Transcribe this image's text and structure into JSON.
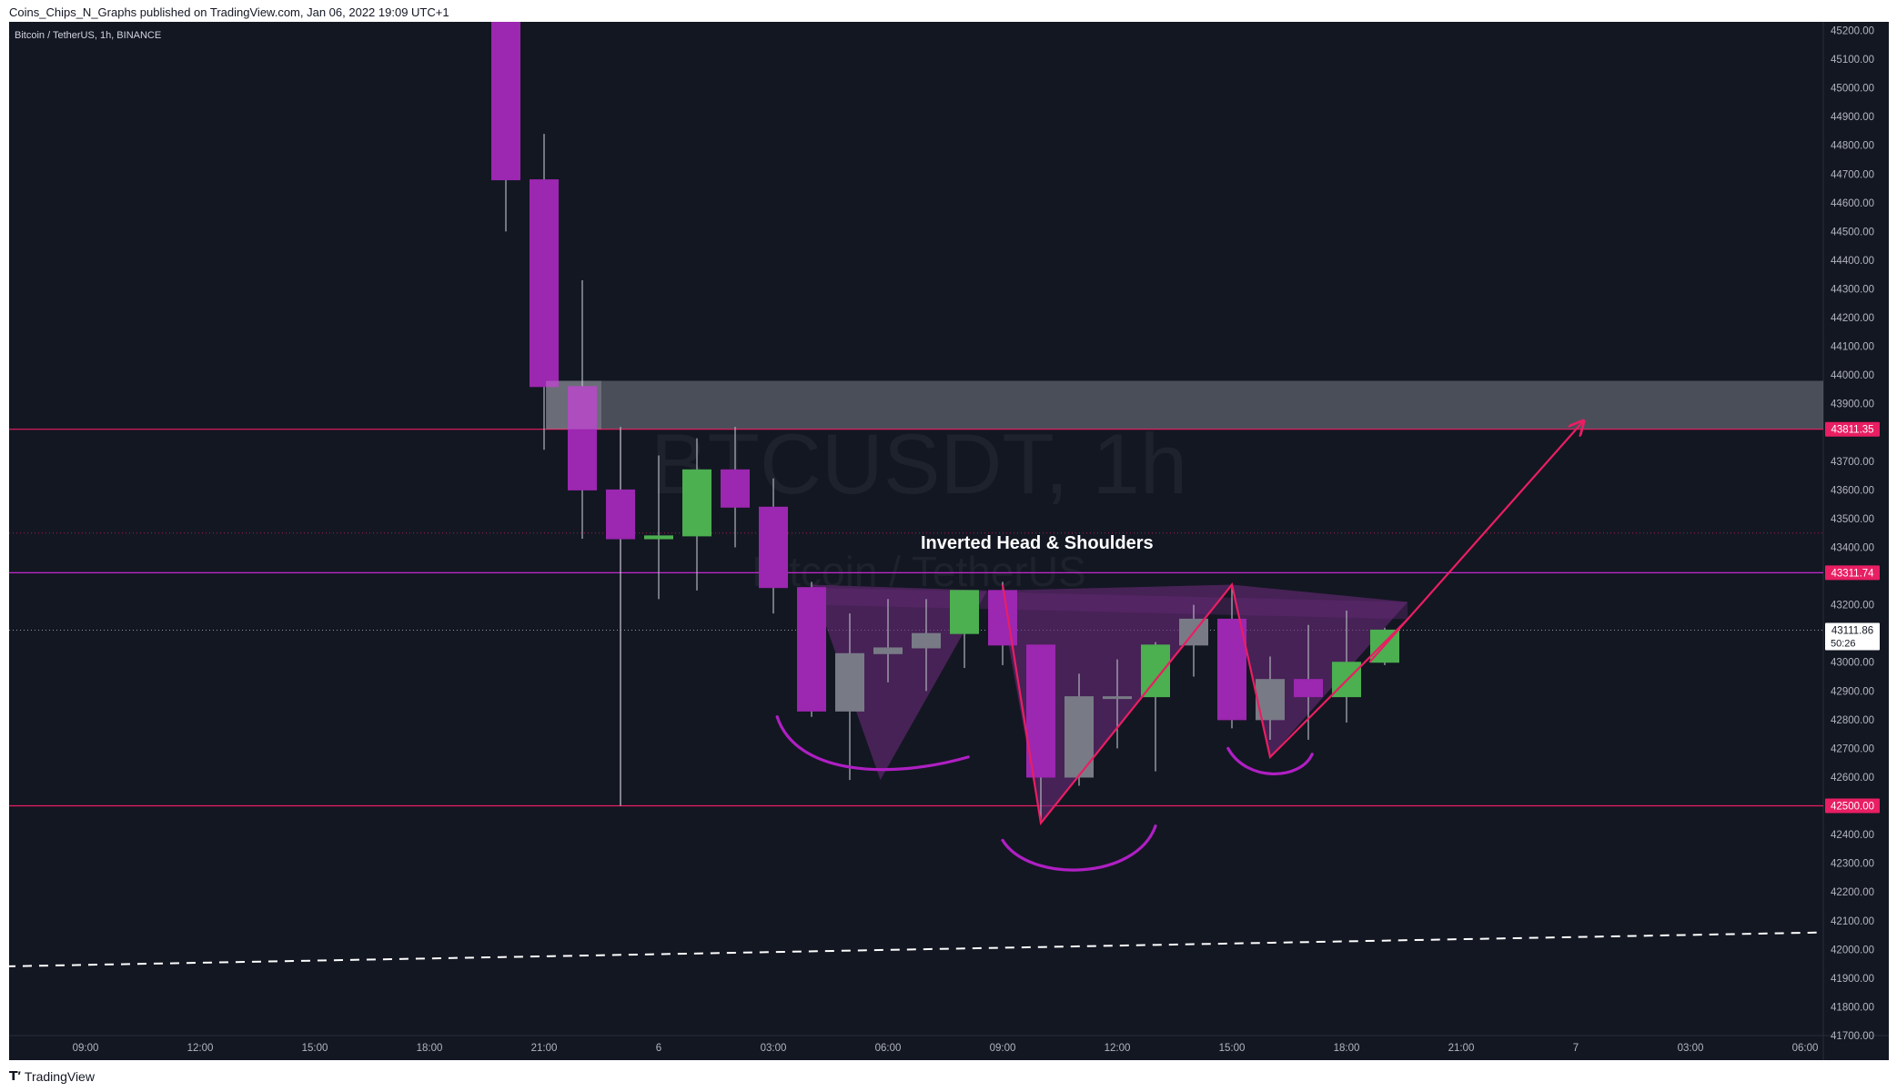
{
  "header": {
    "published": "Coins_Chips_N_Graphs published on TradingView.com, Jan 06, 2022 19:09 UTC+1"
  },
  "footer": {
    "brand": "TradingView"
  },
  "colors": {
    "background": "#131722",
    "bearish": "#9c27b0",
    "bullish": "#4caf50",
    "neutral": "#787b86",
    "level_line": "#e91e63",
    "magenta_line": "#c42ad1",
    "zone": "#787b86",
    "pattern_fill": "#6a2a7a",
    "price_label": "#e91e63"
  },
  "chart_data": {
    "type": "candlestick",
    "symbol_info": "Bitcoin / TetherUS, 1h, BINANCE",
    "watermark_line1": "BTCUSDT, 1h",
    "watermark_line2": "Bitcoin / TetherUS",
    "annotation": "Inverted Head & Shoulders",
    "y_range": [
      41700,
      45230
    ],
    "x_range": [
      -0.5,
      41.7
    ],
    "y_ticks": [
      "45200.00",
      "45100.00",
      "45000.00",
      "44900.00",
      "44800.00",
      "44700.00",
      "44600.00",
      "44500.00",
      "44400.00",
      "44300.00",
      "44200.00",
      "44100.00",
      "44000.00",
      "43900.00",
      "43700.00",
      "43600.00",
      "43500.00",
      "43400.00",
      "43200.00",
      "43000.00",
      "42900.00",
      "42800.00",
      "42700.00",
      "42600.00",
      "42400.00",
      "42300.00",
      "42200.00",
      "42100.00",
      "42000.00",
      "41900.00",
      "41800.00",
      "41700.00"
    ],
    "x_ticks": [
      {
        "i": 2,
        "label": "09:00"
      },
      {
        "i": 5,
        "label": "12:00"
      },
      {
        "i": 8,
        "label": "15:00"
      },
      {
        "i": 11,
        "label": "18:00"
      },
      {
        "i": 14,
        "label": "21:00"
      },
      {
        "i": 17,
        "label": "6"
      },
      {
        "i": 20,
        "label": "03:00"
      },
      {
        "i": 23,
        "label": "06:00"
      },
      {
        "i": 26,
        "label": "09:00"
      },
      {
        "i": 29,
        "label": "12:00"
      },
      {
        "i": 32,
        "label": "15:00"
      },
      {
        "i": 35,
        "label": "18:00"
      },
      {
        "i": 38,
        "label": "21:00"
      },
      {
        "i": 41,
        "label": "7"
      },
      {
        "i": 44,
        "label": "03:00"
      },
      {
        "i": 47,
        "label": "06:00"
      }
    ],
    "candles": [
      {
        "i": 13,
        "o": 45300,
        "h": 45300,
        "l": 44500,
        "c": 44680,
        "style": "bear"
      },
      {
        "i": 14,
        "o": 44680,
        "h": 44840,
        "l": 43740,
        "c": 43960,
        "style": "bear"
      },
      {
        "i": 15,
        "o": 43960,
        "h": 44330,
        "l": 43430,
        "c": 43600,
        "style": "bear"
      },
      {
        "i": 16,
        "o": 43600,
        "h": 43820,
        "l": 42500,
        "c": 43430,
        "style": "bear"
      },
      {
        "i": 17,
        "o": 43430,
        "h": 43720,
        "l": 43220,
        "c": 43440,
        "style": "bull"
      },
      {
        "i": 18,
        "o": 43440,
        "h": 43780,
        "l": 43250,
        "c": 43670,
        "style": "bull"
      },
      {
        "i": 19,
        "o": 43670,
        "h": 43820,
        "l": 43400,
        "c": 43540,
        "style": "bear"
      },
      {
        "i": 20,
        "o": 43540,
        "h": 43640,
        "l": 43170,
        "c": 43260,
        "style": "bear"
      },
      {
        "i": 21,
        "o": 43260,
        "h": 43280,
        "l": 42810,
        "c": 42830,
        "style": "bear"
      },
      {
        "i": 22,
        "o": 42830,
        "h": 43170,
        "l": 42590,
        "c": 43030,
        "style": "neutral"
      },
      {
        "i": 23,
        "o": 43030,
        "h": 43220,
        "l": 42930,
        "c": 43050,
        "style": "neutral"
      },
      {
        "i": 24,
        "o": 43050,
        "h": 43220,
        "l": 42900,
        "c": 43100,
        "style": "neutral"
      },
      {
        "i": 25,
        "o": 43100,
        "h": 43250,
        "l": 42980,
        "c": 43250,
        "style": "bull"
      },
      {
        "i": 26,
        "o": 43250,
        "h": 43280,
        "l": 42990,
        "c": 43060,
        "style": "bear"
      },
      {
        "i": 27,
        "o": 43060,
        "h": 43060,
        "l": 42440,
        "c": 42600,
        "style": "bear"
      },
      {
        "i": 28,
        "o": 42600,
        "h": 42960,
        "l": 42570,
        "c": 42880,
        "style": "neutral"
      },
      {
        "i": 29,
        "o": 42880,
        "h": 43010,
        "l": 42700,
        "c": 42880,
        "style": "neutral"
      },
      {
        "i": 30,
        "o": 42880,
        "h": 43070,
        "l": 42620,
        "c": 43060,
        "style": "bull"
      },
      {
        "i": 31,
        "o": 43060,
        "h": 43200,
        "l": 42950,
        "c": 43150,
        "style": "neutral"
      },
      {
        "i": 32,
        "o": 43150,
        "h": 43270,
        "l": 42770,
        "c": 42800,
        "style": "bear"
      },
      {
        "i": 33,
        "o": 42800,
        "h": 43020,
        "l": 42730,
        "c": 42940,
        "style": "neutral"
      },
      {
        "i": 34,
        "o": 42940,
        "h": 43130,
        "l": 42730,
        "c": 42880,
        "style": "bear"
      },
      {
        "i": 35,
        "o": 42880,
        "h": 43180,
        "l": 42790,
        "c": 43000,
        "style": "bull"
      },
      {
        "i": 36,
        "o": 43000,
        "h": 43120,
        "l": 42990,
        "c": 43112,
        "style": "bull"
      }
    ],
    "levels": [
      {
        "price": 43811.35,
        "label": "43811.35",
        "style": "pink"
      },
      {
        "price": 43311.74,
        "label": "43311.74",
        "style": "magenta"
      },
      {
        "price": 42500.0,
        "label": "42500.00",
        "style": "pink"
      }
    ],
    "current_price": {
      "price": 43111.86,
      "label": "43111.86",
      "countdown": "50:26"
    },
    "dotted_line_price": 43450,
    "resistance_zone": {
      "from_i": 14.05,
      "y_top": 43980,
      "y_bottom": 43811.35
    },
    "vertical_line": {
      "i": 16,
      "y_top": 43811.35,
      "y_bottom": 42500
    },
    "projection_arrow": {
      "from": [
        35.6,
        43000
      ],
      "to": [
        41.2,
        43840
      ]
    },
    "neckline": [
      [
        21,
        43260
      ],
      [
        36.6,
        43210
      ]
    ],
    "pattern_lines": [
      [
        [
          26,
          43270
        ],
        [
          27,
          42440
        ],
        [
          32,
          43270
        ],
        [
          33,
          42670
        ],
        [
          36.6,
          43150
        ]
      ]
    ],
    "shaded_triangles": [
      [
        [
          21,
          43270
        ],
        [
          22.8,
          42590
        ],
        [
          25.6,
          43250
        ]
      ],
      [
        [
          25.9,
          43250
        ],
        [
          27,
          42440
        ],
        [
          32,
          43270
        ]
      ],
      [
        [
          32,
          43270
        ],
        [
          33,
          42670
        ],
        [
          36.6,
          43210
        ]
      ]
    ],
    "curves": [
      {
        "type": "shoulder",
        "points": [
          [
            20.1,
            42810
          ],
          [
            20.6,
            42610
          ],
          [
            23,
            42590
          ],
          [
            25.1,
            42670
          ]
        ]
      },
      {
        "type": "head",
        "points": [
          [
            26.0,
            42380
          ],
          [
            26.7,
            42230
          ],
          [
            29.5,
            42240
          ],
          [
            30.0,
            42430
          ]
        ]
      },
      {
        "type": "shoulder",
        "points": [
          [
            31.9,
            42700
          ],
          [
            32.4,
            42580
          ],
          [
            33.8,
            42590
          ],
          [
            34.1,
            42680
          ]
        ]
      }
    ],
    "dashed_trend": {
      "from": [
        -0.5,
        41940
      ],
      "to": [
        47.8,
        42060
      ]
    }
  }
}
